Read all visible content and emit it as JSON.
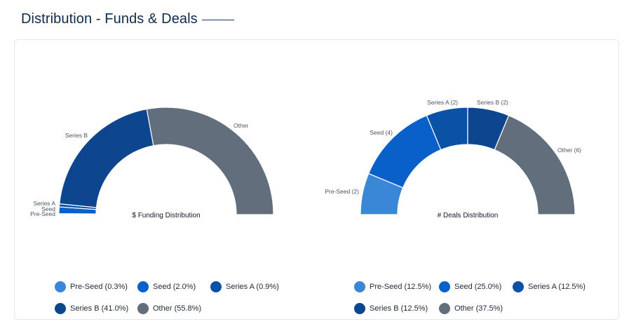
{
  "header": {
    "title": "Distribution - Funds & Deals"
  },
  "colors": {
    "pre_seed": "#3a87d8",
    "seed": "#0a60c9",
    "series_a": "#0b51a5",
    "series_b": "#0d468f",
    "other": "#626e7b"
  },
  "chart_data": [
    {
      "type": "pie",
      "subtype": "half-donut",
      "title": "$ Funding Distribution",
      "slices": [
        {
          "label": "Pre-Seed",
          "value": 0.3,
          "slice_label": "Pre-Seed",
          "legend": "Pre-Seed (0.3%)",
          "color": "#3a87d8"
        },
        {
          "label": "Seed",
          "value": 2.0,
          "slice_label": "Seed",
          "legend": "Seed (2.0%)",
          "color": "#0a60c9"
        },
        {
          "label": "Series A",
          "value": 0.9,
          "slice_label": "Series A",
          "legend": "Series A (0.9%)",
          "color": "#0b51a5"
        },
        {
          "label": "Series B",
          "value": 41.0,
          "slice_label": "Series B",
          "legend": "Series B (41.0%)",
          "color": "#0d468f"
        },
        {
          "label": "Other",
          "value": 55.8,
          "slice_label": "Other",
          "legend": "Other (55.8%)",
          "color": "#626e7b"
        }
      ]
    },
    {
      "type": "pie",
      "subtype": "half-donut",
      "title": "# Deals Distribution",
      "slices": [
        {
          "label": "Pre-Seed",
          "value": 2,
          "slice_label": "Pre-Seed (2)",
          "legend": "Pre-Seed (12.5%)",
          "color": "#3a87d8"
        },
        {
          "label": "Seed",
          "value": 4,
          "slice_label": "Seed (4)",
          "legend": "Seed (25.0%)",
          "color": "#0a60c9"
        },
        {
          "label": "Series A",
          "value": 2,
          "slice_label": "Series A (2)",
          "legend": "Series A (12.5%)",
          "color": "#0b51a5"
        },
        {
          "label": "Series B",
          "value": 2,
          "slice_label": "Series B (2)",
          "legend": "Series B (12.5%)",
          "color": "#0d468f"
        },
        {
          "label": "Other",
          "value": 6,
          "slice_label": "Other (6)",
          "legend": "Other (37.5%)",
          "color": "#626e7b"
        }
      ]
    }
  ]
}
